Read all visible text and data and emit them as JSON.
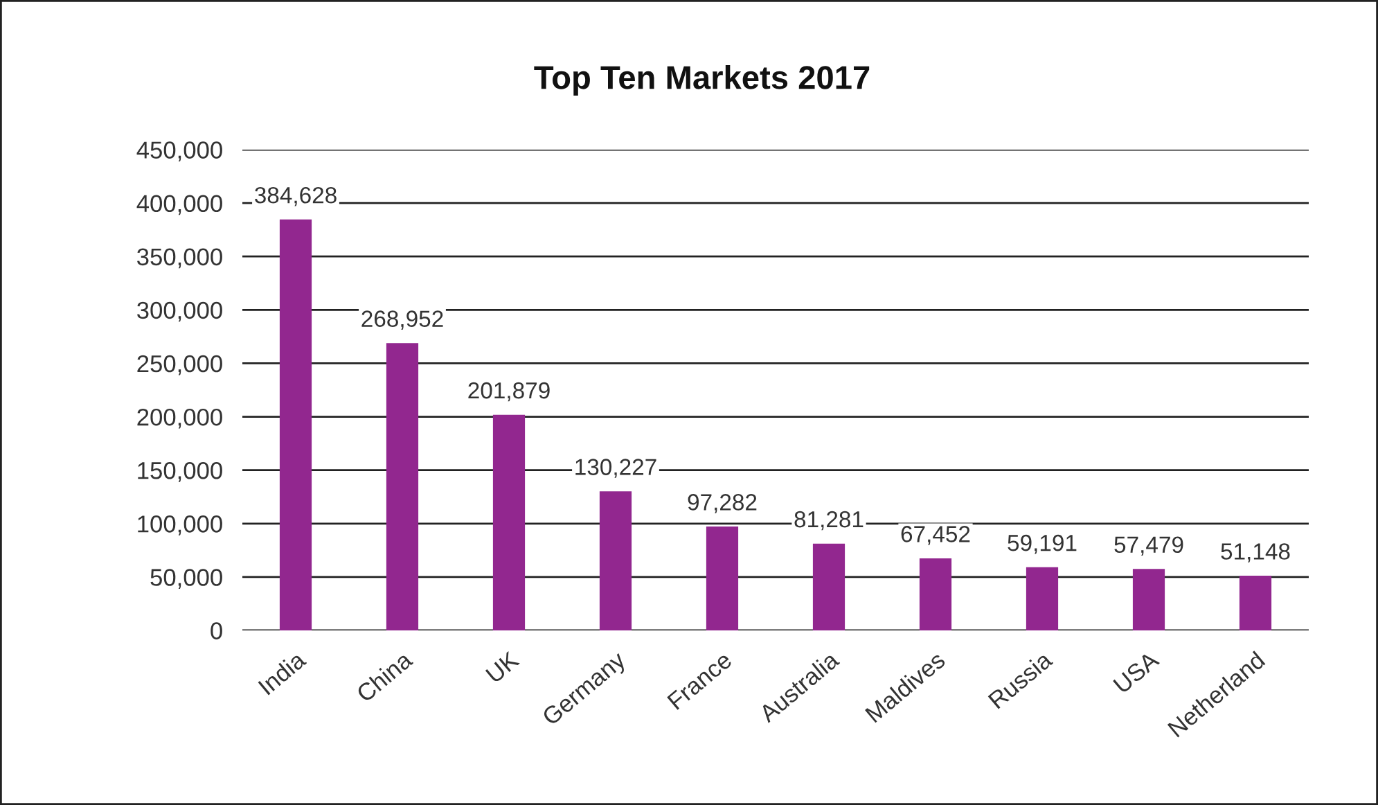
{
  "chart_data": {
    "type": "bar",
    "title": "Top Ten Markets 2017",
    "categories": [
      "India",
      "China",
      "UK",
      "Germany",
      "France",
      "Australia",
      "Maldives",
      "Russia",
      "USA",
      "Netherland"
    ],
    "values": [
      384628,
      268952,
      201879,
      130227,
      97282,
      81281,
      67452,
      59191,
      57479,
      51148
    ],
    "value_labels": [
      "384,628",
      "268,952",
      "201,879",
      "130,227",
      "97,282",
      "81,281",
      "67,452",
      "59,191",
      "57,479",
      "51,148"
    ],
    "color": "#92278f",
    "ylim": [
      0,
      450000
    ],
    "yticks": [
      {
        "value": 0,
        "label": "0"
      },
      {
        "value": 50000,
        "label": "50,000"
      },
      {
        "value": 100000,
        "label": "100,000"
      },
      {
        "value": 150000,
        "label": "150,000"
      },
      {
        "value": 200000,
        "label": "200,000"
      },
      {
        "value": 250000,
        "label": "250,000"
      },
      {
        "value": 300000,
        "label": "300,000"
      },
      {
        "value": 350000,
        "label": "350,000"
      },
      {
        "value": 400000,
        "label": "400,000"
      },
      {
        "value": 450000,
        "label": "450,000"
      }
    ],
    "grid": "y"
  }
}
